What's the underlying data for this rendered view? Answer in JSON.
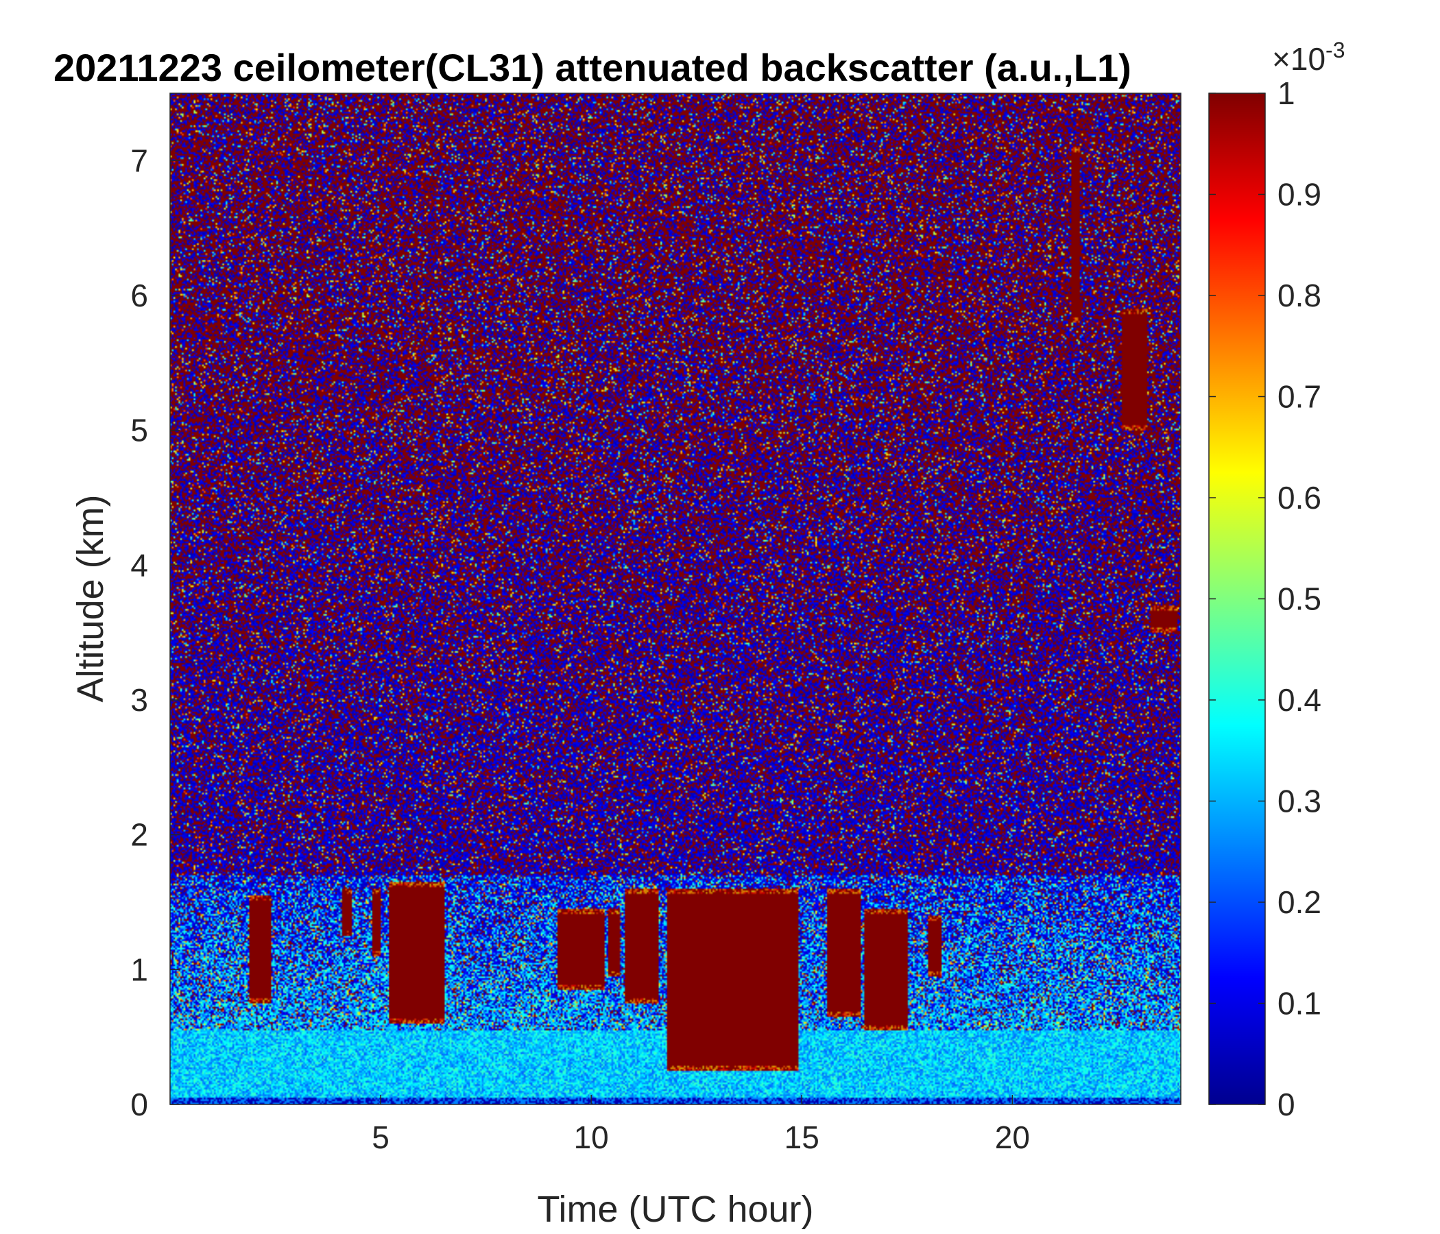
{
  "chart_data": {
    "type": "heatmap",
    "title": "20211223 ceilometer(CL31) attenuated backscatter (a.u.,L1)",
    "xlabel": "Time (UTC hour)",
    "ylabel": "Altitude (km)",
    "xlim": [
      0,
      24
    ],
    "ylim": [
      0,
      7.5
    ],
    "x_ticks": [
      5,
      10,
      15,
      20
    ],
    "x_tick_labels": [
      "5",
      "10",
      "15",
      "20"
    ],
    "y_ticks": [
      0,
      1,
      2,
      3,
      4,
      5,
      6,
      7
    ],
    "y_tick_labels": [
      "0",
      "1",
      "2",
      "3",
      "4",
      "5",
      "6",
      "7"
    ],
    "colorbar": {
      "colormap": "jet",
      "clim": [
        0,
        1
      ],
      "ticks": [
        0,
        0.1,
        0.2,
        0.3,
        0.4,
        0.5,
        0.6,
        0.7,
        0.8,
        0.9,
        1
      ],
      "tick_labels": [
        "0",
        "0.1",
        "0.2",
        "0.3",
        "0.4",
        "0.5",
        "0.6",
        "0.7",
        "0.8",
        "0.9",
        "1"
      ],
      "exponent_label": "×10",
      "exponent_power": "-3"
    },
    "cloud_layers": [
      {
        "start": 1.9,
        "end": 2.4,
        "base": 0.75,
        "top": 1.55,
        "value": 1
      },
      {
        "start": 4.1,
        "end": 4.3,
        "base": 1.25,
        "top": 1.6,
        "value": 1
      },
      {
        "start": 4.8,
        "end": 5.0,
        "base": 1.1,
        "top": 1.6,
        "value": 1
      },
      {
        "start": 5.2,
        "end": 6.5,
        "base": 0.6,
        "top": 1.65,
        "value": 1
      },
      {
        "start": 9.2,
        "end": 10.3,
        "base": 0.85,
        "top": 1.45,
        "value": 1
      },
      {
        "start": 10.4,
        "end": 10.7,
        "base": 0.95,
        "top": 1.45,
        "value": 1
      },
      {
        "start": 10.8,
        "end": 11.6,
        "base": 0.75,
        "top": 1.6,
        "value": 1
      },
      {
        "start": 11.8,
        "end": 14.9,
        "base": 0.25,
        "top": 1.6,
        "value": 1
      },
      {
        "start": 15.6,
        "end": 16.4,
        "base": 0.65,
        "top": 1.6,
        "value": 1
      },
      {
        "start": 16.5,
        "end": 17.5,
        "base": 0.55,
        "top": 1.45,
        "value": 1
      },
      {
        "start": 18.0,
        "end": 18.3,
        "base": 0.95,
        "top": 1.4,
        "value": 1
      },
      {
        "start": 21.4,
        "end": 21.6,
        "base": 5.8,
        "top": 7.1,
        "value": 1
      },
      {
        "start": 22.6,
        "end": 23.2,
        "base": 5.0,
        "top": 5.9,
        "value": 1
      },
      {
        "start": 23.3,
        "end": 23.9,
        "base": 3.5,
        "top": 3.7,
        "value": 1
      }
    ],
    "boundary_layer": {
      "base": 0,
      "top": 0.55,
      "value": 0.33
    },
    "noise_region": {
      "base": 1.7,
      "top": 7.5,
      "value_mix": [
        0.05,
        1
      ]
    },
    "grid": false,
    "legend": "colorbar-right"
  }
}
